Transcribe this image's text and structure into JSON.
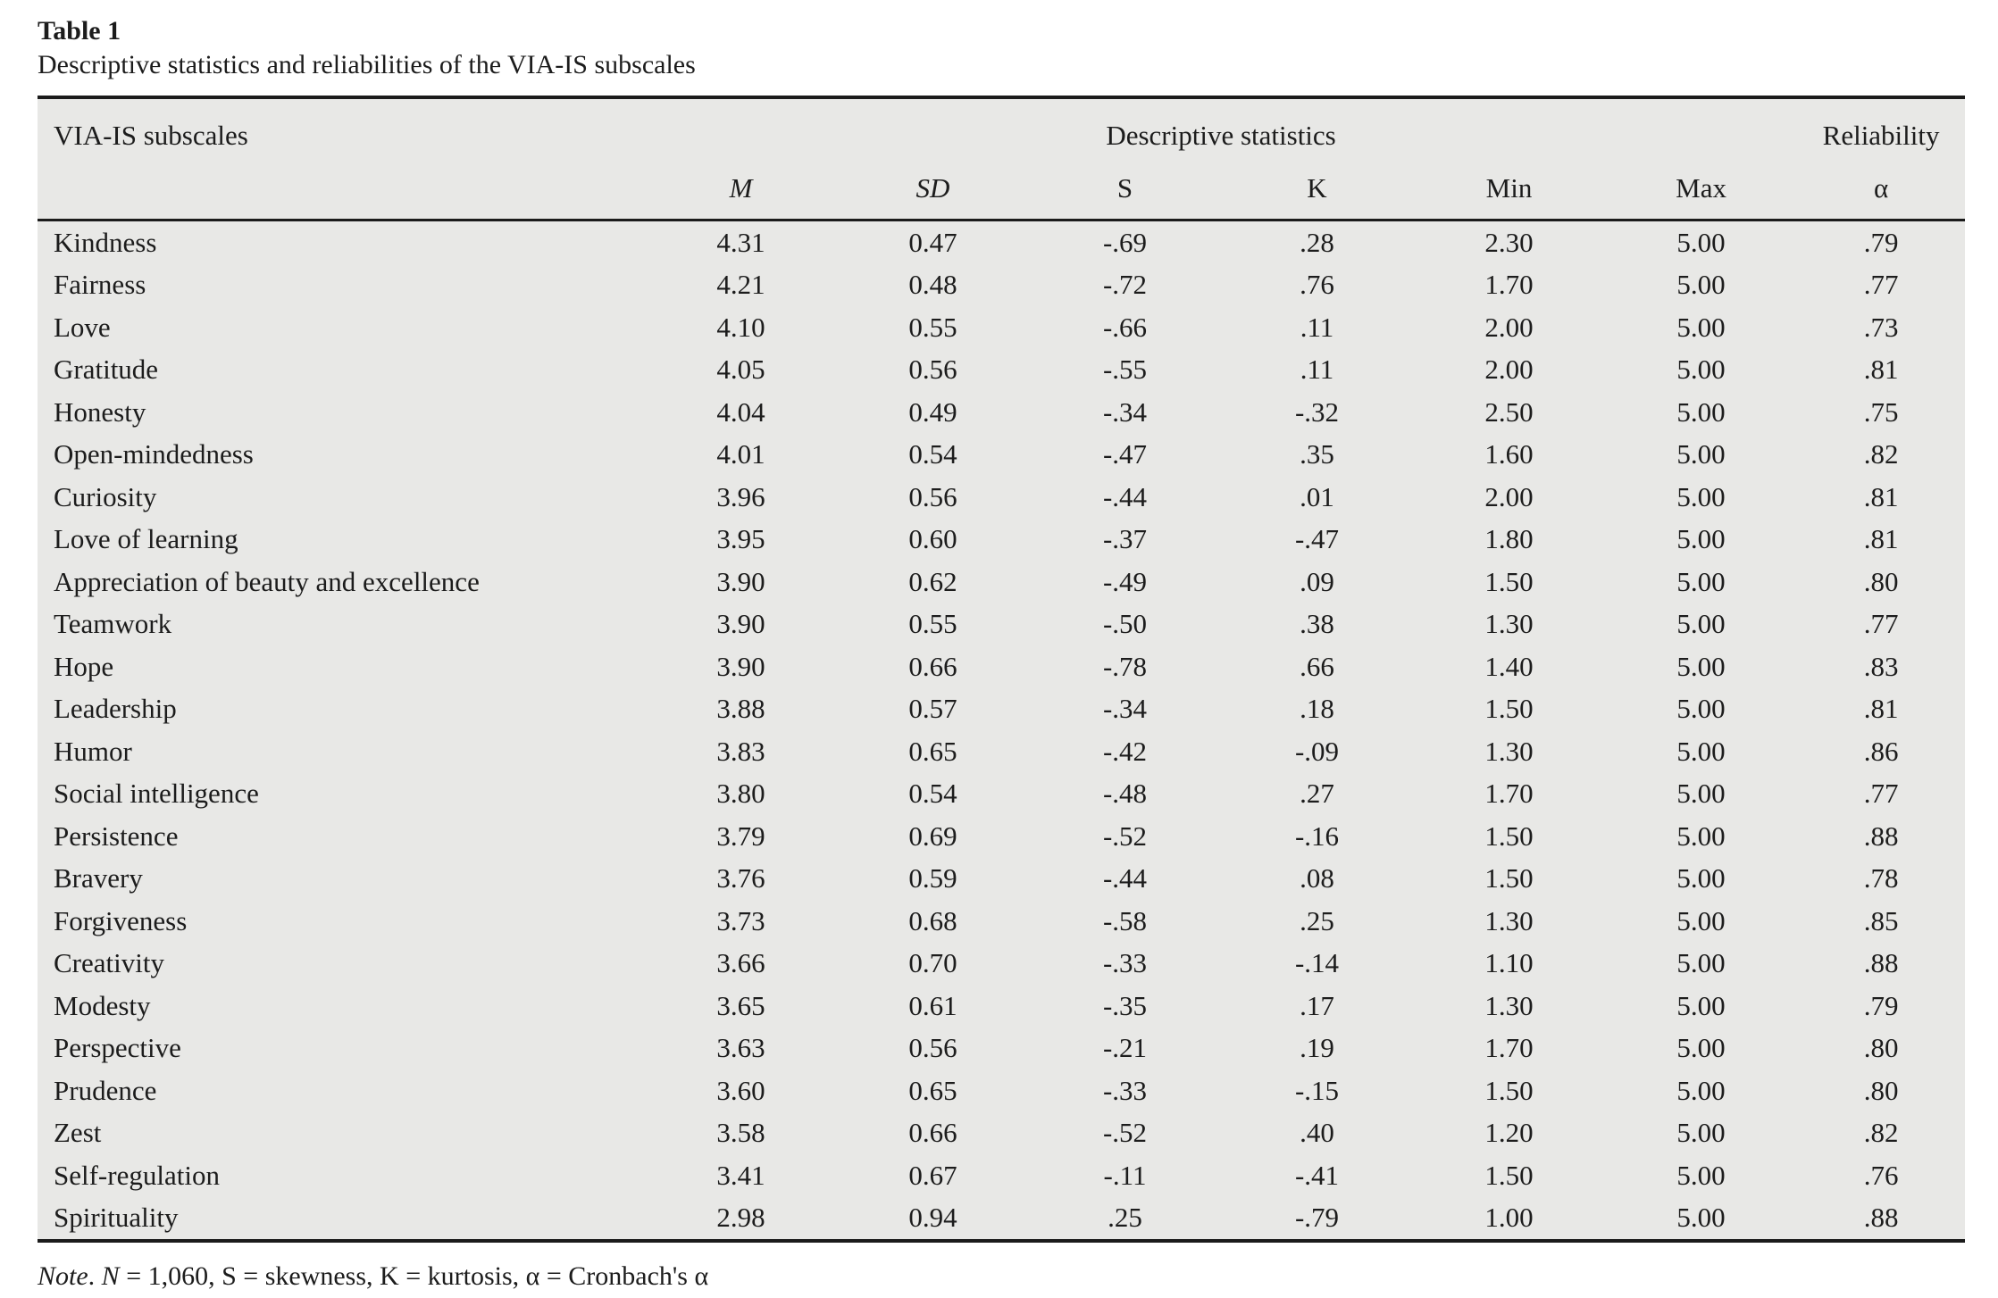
{
  "title": "Table 1",
  "caption": "Descriptive statistics and reliabilities of the VIA-IS subscales",
  "table": {
    "corner_header": "VIA-IS subscales",
    "group_headers": {
      "descriptive": "Descriptive statistics",
      "reliability": "Reliability"
    },
    "columns": [
      "M",
      "SD",
      "S",
      "K",
      "Min",
      "Max",
      "α"
    ],
    "rows": [
      {
        "name": "Kindness",
        "values": [
          "4.31",
          "0.47",
          "-.69",
          ".28",
          "2.30",
          "5.00",
          ".79"
        ]
      },
      {
        "name": "Fairness",
        "values": [
          "4.21",
          "0.48",
          "-.72",
          ".76",
          "1.70",
          "5.00",
          ".77"
        ]
      },
      {
        "name": "Love",
        "values": [
          "4.10",
          "0.55",
          "-.66",
          ".11",
          "2.00",
          "5.00",
          ".73"
        ]
      },
      {
        "name": "Gratitude",
        "values": [
          "4.05",
          "0.56",
          "-.55",
          ".11",
          "2.00",
          "5.00",
          ".81"
        ]
      },
      {
        "name": "Honesty",
        "values": [
          "4.04",
          "0.49",
          "-.34",
          "-.32",
          "2.50",
          "5.00",
          ".75"
        ]
      },
      {
        "name": "Open-mindedness",
        "values": [
          "4.01",
          "0.54",
          "-.47",
          ".35",
          "1.60",
          "5.00",
          ".82"
        ]
      },
      {
        "name": "Curiosity",
        "values": [
          "3.96",
          "0.56",
          "-.44",
          ".01",
          "2.00",
          "5.00",
          ".81"
        ]
      },
      {
        "name": "Love of learning",
        "values": [
          "3.95",
          "0.60",
          "-.37",
          "-.47",
          "1.80",
          "5.00",
          ".81"
        ]
      },
      {
        "name": "Appreciation of beauty and excellence",
        "values": [
          "3.90",
          "0.62",
          "-.49",
          ".09",
          "1.50",
          "5.00",
          ".80"
        ]
      },
      {
        "name": "Teamwork",
        "values": [
          "3.90",
          "0.55",
          "-.50",
          ".38",
          "1.30",
          "5.00",
          ".77"
        ]
      },
      {
        "name": "Hope",
        "values": [
          "3.90",
          "0.66",
          "-.78",
          ".66",
          "1.40",
          "5.00",
          ".83"
        ]
      },
      {
        "name": "Leadership",
        "values": [
          "3.88",
          "0.57",
          "-.34",
          ".18",
          "1.50",
          "5.00",
          ".81"
        ]
      },
      {
        "name": "Humor",
        "values": [
          "3.83",
          "0.65",
          "-.42",
          "-.09",
          "1.30",
          "5.00",
          ".86"
        ]
      },
      {
        "name": "Social intelligence",
        "values": [
          "3.80",
          "0.54",
          "-.48",
          ".27",
          "1.70",
          "5.00",
          ".77"
        ]
      },
      {
        "name": "Persistence",
        "values": [
          "3.79",
          "0.69",
          "-.52",
          "-.16",
          "1.50",
          "5.00",
          ".88"
        ]
      },
      {
        "name": "Bravery",
        "values": [
          "3.76",
          "0.59",
          "-.44",
          ".08",
          "1.50",
          "5.00",
          ".78"
        ]
      },
      {
        "name": "Forgiveness",
        "values": [
          "3.73",
          "0.68",
          "-.58",
          ".25",
          "1.30",
          "5.00",
          ".85"
        ]
      },
      {
        "name": "Creativity",
        "values": [
          "3.66",
          "0.70",
          "-.33",
          "-.14",
          "1.10",
          "5.00",
          ".88"
        ]
      },
      {
        "name": "Modesty",
        "values": [
          "3.65",
          "0.61",
          "-.35",
          ".17",
          "1.30",
          "5.00",
          ".79"
        ]
      },
      {
        "name": "Perspective",
        "values": [
          "3.63",
          "0.56",
          "-.21",
          ".19",
          "1.70",
          "5.00",
          ".80"
        ]
      },
      {
        "name": "Prudence",
        "values": [
          "3.60",
          "0.65",
          "-.33",
          "-.15",
          "1.50",
          "5.00",
          ".80"
        ]
      },
      {
        "name": "Zest",
        "values": [
          "3.58",
          "0.66",
          "-.52",
          ".40",
          "1.20",
          "5.00",
          ".82"
        ]
      },
      {
        "name": "Self-regulation",
        "values": [
          "3.41",
          "0.67",
          "-.11",
          "-.41",
          "1.50",
          "5.00",
          ".76"
        ]
      },
      {
        "name": "Spirituality",
        "values": [
          "2.98",
          "0.94",
          ".25",
          "-.79",
          "1.00",
          "5.00",
          ".88"
        ]
      }
    ]
  },
  "note": {
    "segments": [
      {
        "text": "Note",
        "italic": true
      },
      {
        "text": ". ",
        "italic": false
      },
      {
        "text": "N",
        "italic": true
      },
      {
        "text": " = 1,060, S = skewness, K = kurtosis, α = Cronbach's α",
        "italic": false
      }
    ]
  },
  "colors": {
    "table_background": "#e8e8e6",
    "rule": "#1b1b1b",
    "text": "#1c1c1c"
  }
}
